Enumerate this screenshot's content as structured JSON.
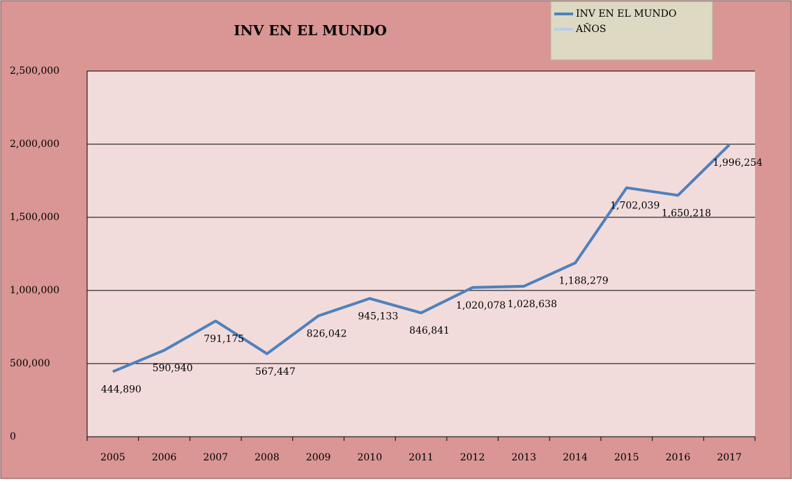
{
  "chart_data": {
    "type": "line",
    "title": "INV EN EL MUNDO",
    "categories": [
      "2005",
      "2006",
      "2007",
      "2008",
      "2009",
      "2010",
      "2011",
      "2012",
      "2013",
      "2014",
      "2015",
      "2016",
      "2017"
    ],
    "series": [
      {
        "name": "INV EN EL MUNDO",
        "color": "#4f81bd",
        "values": [
          444890,
          590940,
          791175,
          567447,
          826042,
          945133,
          846841,
          1020078,
          1028638,
          1188279,
          1702039,
          1650218,
          1996254
        ],
        "value_labels": [
          "444,890",
          "590,940",
          "791,175",
          "567,447",
          "826,042",
          "945,133",
          "846,841",
          "1,020,078",
          "1,028,638",
          "1,188,279",
          "1,702,039",
          "1,650,218",
          "1,996,254"
        ]
      },
      {
        "name": "AÑOS",
        "color": "#b9cde5",
        "values": [
          null,
          null,
          null,
          null,
          null,
          null,
          null,
          null,
          null,
          null,
          null,
          null,
          null
        ]
      }
    ],
    "ylim": [
      0,
      2500000
    ],
    "yticks": [
      0,
      {
        "value": 500000,
        "label": "500,000"
      },
      {
        "value": 1000000,
        "label": "1,000,000"
      },
      {
        "value": 1500000,
        "label": "1,500,000"
      },
      {
        "value": 2000000,
        "label": "2,000,000"
      },
      {
        "value": 2500000,
        "label": "2,500,000"
      }
    ],
    "grid": true,
    "legend": "top-right"
  }
}
